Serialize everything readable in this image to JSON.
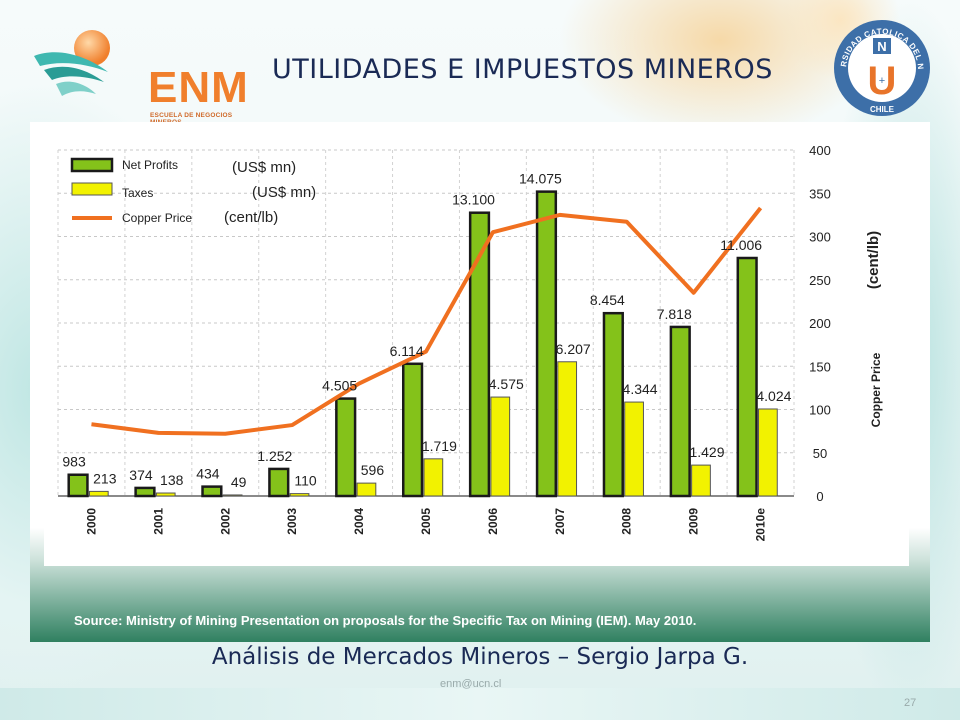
{
  "slide": {
    "title": "UTILIDADES E IMPUESTOS MINEROS",
    "footer": "Análisis  de Mercados Mineros – Sergio Jarpa G.",
    "email": "enm@ucn.cl",
    "page_number": "27",
    "source": "Source: Ministry of Mining Presentation on proposals for the Specific Tax on Mining (IEM). May 2010."
  },
  "logo": {
    "text": "ENM",
    "subtitle": "ESCUELA DE NEGOCIOS MINEROS",
    "color": "#f07f2c"
  },
  "seal": {
    "ring_text": "UNIVERSIDAD CATOLICA DEL NORTE",
    "country": "CHILE",
    "letter": "U",
    "badge": "N",
    "color": "#3d6fa8"
  },
  "chart_data": {
    "type": "bar",
    "categories": [
      "2000",
      "2001",
      "2002",
      "2003",
      "2004",
      "2005",
      "2006",
      "2007",
      "2008",
      "2009",
      "2010e"
    ],
    "series": [
      {
        "name": "Net Profits",
        "unit": "(US$ mn)",
        "color": "#84c21a",
        "values": [
          983,
          374,
          434,
          1252,
          4505,
          6114,
          13100,
          14075,
          8454,
          7818,
          11006
        ],
        "labels": [
          "983",
          "374",
          "434",
          "1.252",
          "4.505",
          "6.114",
          "13.100",
          "14.075",
          "8.454",
          "7.818",
          "11.006"
        ]
      },
      {
        "name": "Taxes",
        "unit": "(US$ mn)",
        "color": "#f2f200",
        "values": [
          213,
          138,
          49,
          110,
          596,
          1719,
          4575,
          6207,
          4344,
          1429,
          4024
        ],
        "labels": [
          "213",
          "138",
          "49",
          "110",
          "596",
          "1.719",
          "4.575",
          "6.207",
          "4.344",
          "1.429",
          "4.024"
        ]
      },
      {
        "name": "Copper Price",
        "unit": "(cent/lb)",
        "type": "line",
        "color": "#f07020",
        "values": [
          83,
          73,
          72,
          82,
          130,
          167,
          305,
          325,
          317,
          235,
          333
        ]
      }
    ],
    "y_right": {
      "label": "Copper Price",
      "unit_label": "(cent/lb)",
      "lim": [
        0,
        400
      ],
      "ticks": [
        0,
        50,
        100,
        150,
        200,
        250,
        300,
        350,
        400
      ]
    },
    "bars_ylim": [
      0,
      16000
    ],
    "grid": true,
    "legend": "top-left"
  }
}
